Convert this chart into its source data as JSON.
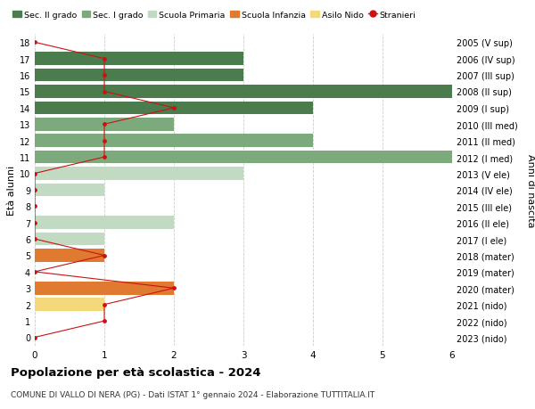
{
  "ages": [
    18,
    17,
    16,
    15,
    14,
    13,
    12,
    11,
    10,
    9,
    8,
    7,
    6,
    5,
    4,
    3,
    2,
    1,
    0
  ],
  "right_labels": [
    "2005 (V sup)",
    "2006 (IV sup)",
    "2007 (III sup)",
    "2008 (II sup)",
    "2009 (I sup)",
    "2010 (III med)",
    "2011 (II med)",
    "2012 (I med)",
    "2013 (V ele)",
    "2014 (IV ele)",
    "2015 (III ele)",
    "2016 (II ele)",
    "2017 (I ele)",
    "2018 (mater)",
    "2019 (mater)",
    "2020 (mater)",
    "2021 (nido)",
    "2022 (nido)",
    "2023 (nido)"
  ],
  "bar_values": [
    0,
    3,
    3,
    6,
    4,
    2,
    4,
    6,
    3,
    1,
    0,
    2,
    1,
    1,
    0,
    2,
    1,
    0,
    0
  ],
  "bar_colors": [
    "#4a7c4e",
    "#4a7c4e",
    "#4a7c4e",
    "#4a7c4e",
    "#4a7c4e",
    "#7daa7d",
    "#7daa7d",
    "#7daa7d",
    "#c2d9c2",
    "#c2d9c2",
    "#c2d9c2",
    "#c2d9c2",
    "#c2d9c2",
    "#e07a30",
    "#e07a30",
    "#e07a30",
    "#f5d87a",
    "#f5d87a",
    "#f5d87a"
  ],
  "stranieri_values": [
    0,
    1,
    1,
    1,
    2,
    1,
    1,
    1,
    0,
    0,
    0,
    0,
    0,
    1,
    0,
    2,
    1,
    1,
    0
  ],
  "colors": {
    "sec2": "#4a7c4e",
    "sec1": "#7daa7d",
    "prima": "#c2d9c2",
    "infanzia": "#e07a30",
    "nido": "#f5d87a",
    "stranieri": "#cc1111"
  },
  "legend_labels": [
    "Sec. II grado",
    "Sec. I grado",
    "Scuola Primaria",
    "Scuola Infanzia",
    "Asilo Nido",
    "Stranieri"
  ],
  "xlim": [
    0,
    6
  ],
  "ylim": [
    -0.5,
    18.5
  ],
  "ylabel_left": "Età alunni",
  "ylabel_right": "Anni di nascita",
  "title": "Popolazione per età scolastica - 2024",
  "subtitle": "COMUNE DI VALLO DI NERA (PG) - Dati ISTAT 1° gennaio 2024 - Elaborazione TUTTITALIA.IT",
  "background_color": "#ffffff",
  "bar_height": 0.8,
  "grid_color": "#cccccc"
}
